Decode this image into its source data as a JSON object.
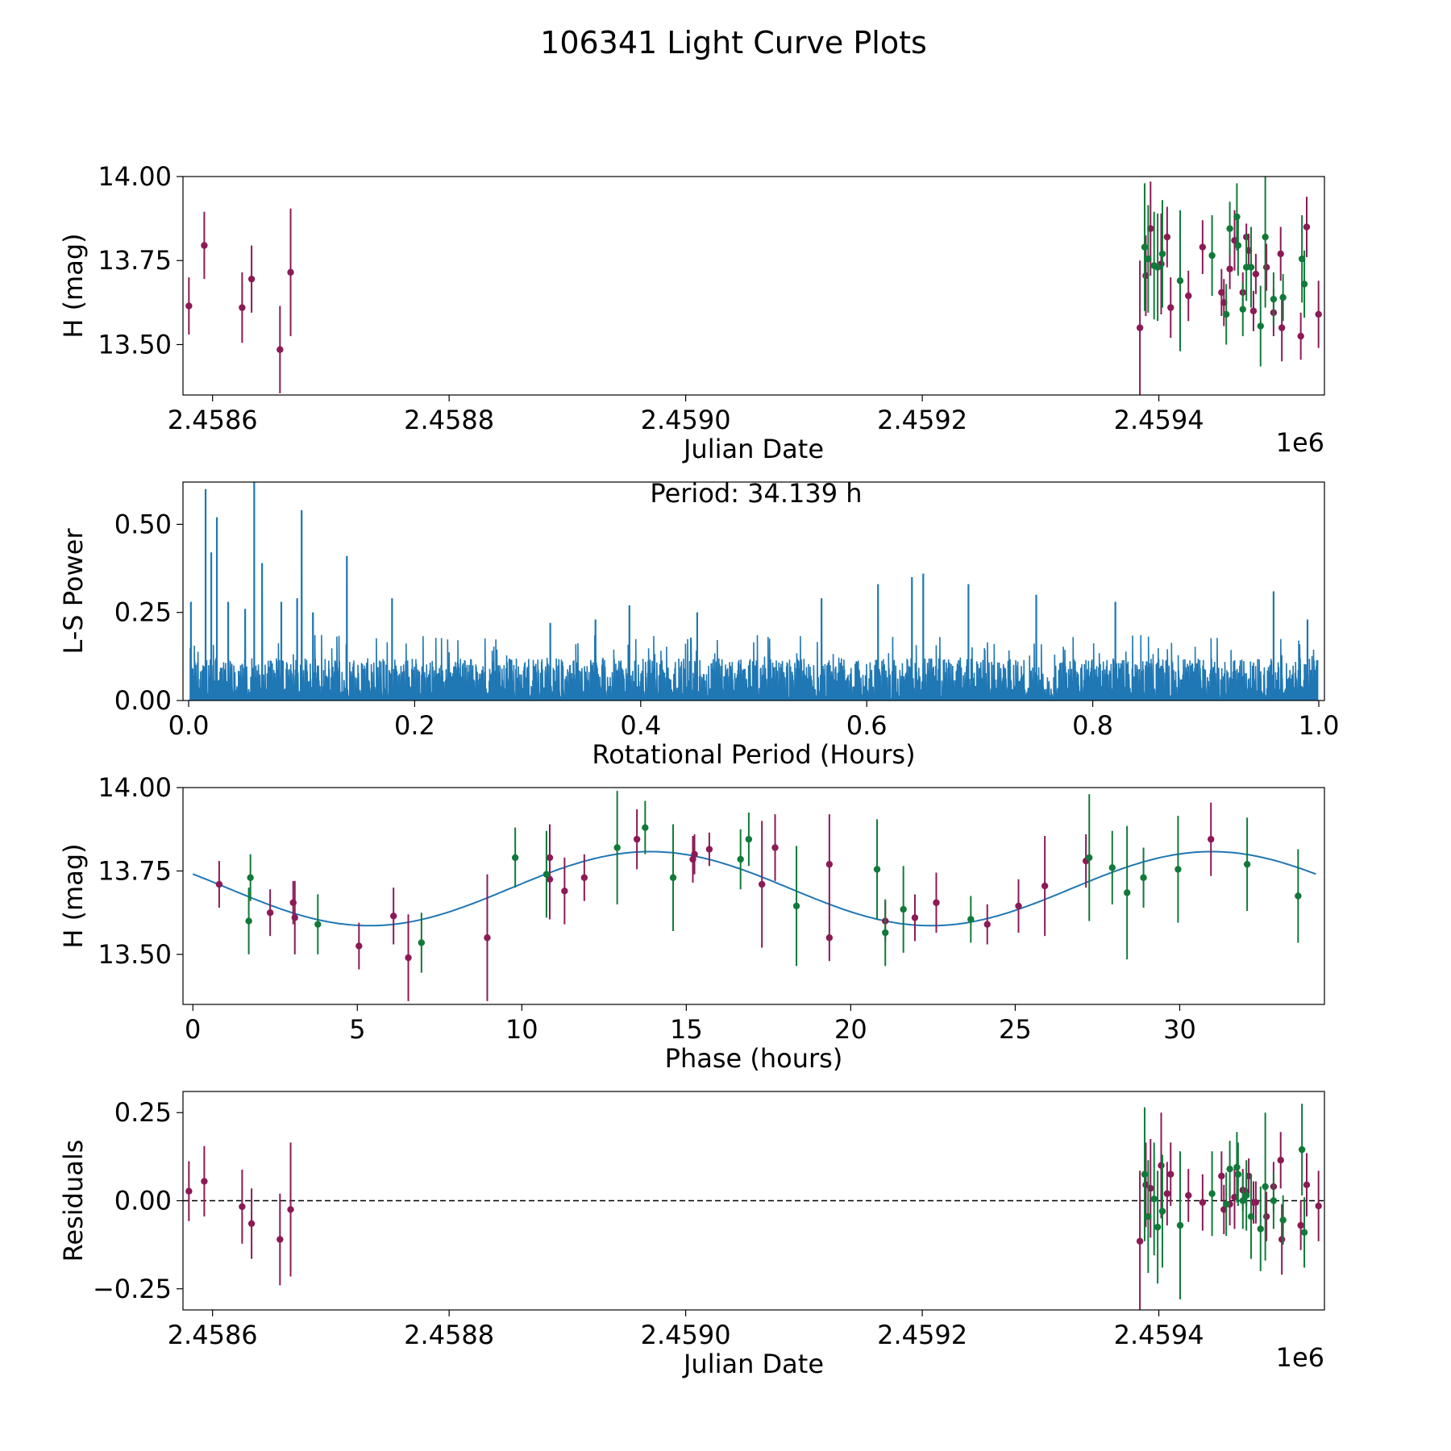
{
  "figure_title": "106341 Light Curve Plots",
  "colors": {
    "maroon": "#8b1a55",
    "green": "#117a3a",
    "line_blue": "#1f77b4",
    "axis": "#000000"
  },
  "chart_data": [
    {
      "id": "lightcurve-jd",
      "type": "scatter",
      "title": "",
      "xlabel": "Julian Date",
      "ylabel": "H (mag)",
      "xlim": [
        2458575,
        2459540
      ],
      "ylim": [
        13.35,
        14.0
      ],
      "x_offset_label": "1e6",
      "xticks": [
        2458600,
        2458800,
        2459000,
        2459200,
        2459400
      ],
      "xtick_labels": [
        "2.4586",
        "2.4588",
        "2.4590",
        "2.4592",
        "2.4594"
      ],
      "yticks": [
        13.5,
        13.75,
        14.0
      ],
      "ytick_labels": [
        "13.50",
        "13.75",
        "14.00"
      ],
      "series": [
        {
          "name": "maroon",
          "color_key": "maroon",
          "points": [
            [
              2458580,
              13.615,
              0.085
            ],
            [
              2458593,
              13.795,
              0.1
            ],
            [
              2458625,
              13.61,
              0.105
            ],
            [
              2458633,
              13.695,
              0.1
            ],
            [
              2458657,
              13.485,
              0.13
            ],
            [
              2458666,
              13.715,
              0.19
            ],
            [
              2459384,
              13.55,
              0.2
            ],
            [
              2459389,
              13.705,
              0.12
            ],
            [
              2459393,
              13.845,
              0.14
            ],
            [
              2459402,
              13.74,
              0.15
            ],
            [
              2459407,
              13.82,
              0.09
            ],
            [
              2459410,
              13.61,
              0.09
            ],
            [
              2459425,
              13.645,
              0.075
            ],
            [
              2459437,
              13.79,
              0.08
            ],
            [
              2459453,
              13.655,
              0.07
            ],
            [
              2459455,
              13.625,
              0.07
            ],
            [
              2459460,
              13.725,
              0.06
            ],
            [
              2459464,
              13.81,
              0.09
            ],
            [
              2459471,
              13.655,
              0.06
            ],
            [
              2459474,
              13.82,
              0.04
            ],
            [
              2459476,
              13.78,
              0.05
            ],
            [
              2459480,
              13.6,
              0.06
            ],
            [
              2459482,
              13.71,
              0.06
            ],
            [
              2459491,
              13.73,
              0.07
            ],
            [
              2459497,
              13.595,
              0.07
            ],
            [
              2459503,
              13.77,
              0.08
            ],
            [
              2459504,
              13.55,
              0.1
            ],
            [
              2459520,
              13.525,
              0.07
            ],
            [
              2459525,
              13.85,
              0.09
            ],
            [
              2459535,
              13.59,
              0.1
            ]
          ]
        },
        {
          "name": "green",
          "color_key": "green",
          "points": [
            [
              2459388,
              13.79,
              0.19
            ],
            [
              2459391,
              13.755,
              0.16
            ],
            [
              2459396,
              13.735,
              0.16
            ],
            [
              2459399,
              13.73,
              0.16
            ],
            [
              2459403,
              13.77,
              0.16
            ],
            [
              2459418,
              13.69,
              0.21
            ],
            [
              2459445,
              13.765,
              0.12
            ],
            [
              2459457,
              13.59,
              0.09
            ],
            [
              2459460,
              13.845,
              0.08
            ],
            [
              2459466,
              13.88,
              0.1
            ],
            [
              2459467,
              13.795,
              0.09
            ],
            [
              2459471,
              13.605,
              0.08
            ],
            [
              2459474,
              13.73,
              0.1
            ],
            [
              2459478,
              13.73,
              0.12
            ],
            [
              2459486,
              13.555,
              0.12
            ],
            [
              2459490,
              13.82,
              0.21
            ],
            [
              2459497,
              13.635,
              0.08
            ],
            [
              2459505,
              13.64,
              0.07
            ],
            [
              2459521,
              13.755,
              0.13
            ],
            [
              2459523,
              13.68,
              0.1
            ]
          ]
        }
      ]
    },
    {
      "id": "periodogram",
      "type": "line",
      "title": "",
      "xlabel": "Rotational Period (Hours)",
      "ylabel": "L-S Power",
      "xlim": [
        -0.005,
        1.005
      ],
      "ylim": [
        0.0,
        0.62
      ],
      "xticks": [
        0.0,
        0.2,
        0.4,
        0.6,
        0.8,
        1.0
      ],
      "xtick_labels": [
        "0.0",
        "0.2",
        "0.4",
        "0.6",
        "0.8",
        "1.0"
      ],
      "yticks": [
        0.0,
        0.25,
        0.5
      ],
      "ytick_labels": [
        "0.00",
        "0.25",
        "0.50"
      ],
      "annotation": "Period: 34.139 h",
      "baseline_power": 0.12,
      "peaks": [
        [
          0.002,
          0.28
        ],
        [
          0.015,
          0.6
        ],
        [
          0.02,
          0.42
        ],
        [
          0.025,
          0.52
        ],
        [
          0.035,
          0.28
        ],
        [
          0.05,
          0.26
        ],
        [
          0.058,
          0.62
        ],
        [
          0.065,
          0.39
        ],
        [
          0.082,
          0.28
        ],
        [
          0.096,
          0.29
        ],
        [
          0.1,
          0.54
        ],
        [
          0.11,
          0.25
        ],
        [
          0.14,
          0.41
        ],
        [
          0.18,
          0.29
        ],
        [
          0.32,
          0.22
        ],
        [
          0.36,
          0.23
        ],
        [
          0.39,
          0.27
        ],
        [
          0.45,
          0.25
        ],
        [
          0.56,
          0.29
        ],
        [
          0.61,
          0.33
        ],
        [
          0.64,
          0.35
        ],
        [
          0.65,
          0.36
        ],
        [
          0.69,
          0.33
        ],
        [
          0.75,
          0.3
        ],
        [
          0.82,
          0.28
        ],
        [
          0.96,
          0.31
        ],
        [
          0.99,
          0.23
        ]
      ]
    },
    {
      "id": "phase-fold",
      "type": "scatter",
      "title": "",
      "xlabel": "Phase (hours)",
      "ylabel": "H (mag)",
      "xlim": [
        -0.3,
        34.4
      ],
      "ylim": [
        13.35,
        14.0
      ],
      "xticks": [
        0,
        5,
        10,
        15,
        20,
        25,
        30
      ],
      "xtick_labels": [
        "0",
        "5",
        "10",
        "15",
        "20",
        "25",
        "30"
      ],
      "yticks": [
        13.5,
        13.75,
        14.0
      ],
      "ytick_labels": [
        "13.50",
        "13.75",
        "14.00"
      ],
      "model": {
        "type": "sinusoid",
        "mean": 13.697,
        "amplitude": 0.111,
        "period": 17.07,
        "phase_offset": 13.9,
        "x_range": [
          0,
          34.14
        ]
      },
      "series": [
        {
          "name": "maroon",
          "color_key": "maroon",
          "points": [
            [
              0.8,
              13.71,
              0.07
            ],
            [
              2.35,
              13.625,
              0.07
            ],
            [
              3.05,
              13.655,
              0.065
            ],
            [
              3.1,
              13.61,
              0.11
            ],
            [
              5.05,
              13.525,
              0.07
            ],
            [
              6.1,
              13.615,
              0.085
            ],
            [
              6.55,
              13.49,
              0.13
            ],
            [
              8.95,
              13.55,
              0.19
            ],
            [
              10.85,
              13.79,
              0.1
            ],
            [
              10.85,
              13.725,
              0.12
            ],
            [
              11.3,
              13.69,
              0.1
            ],
            [
              11.9,
              13.73,
              0.07
            ],
            [
              13.5,
              13.845,
              0.09
            ],
            [
              15.2,
              13.785,
              0.07
            ],
            [
              15.25,
              13.8,
              0.06
            ],
            [
              15.7,
              13.815,
              0.05
            ],
            [
              17.3,
              13.71,
              0.19
            ],
            [
              17.7,
              13.82,
              0.1
            ],
            [
              19.35,
              13.77,
              0.15
            ],
            [
              19.35,
              13.55,
              0.07
            ],
            [
              21.05,
              13.6,
              0.06
            ],
            [
              21.95,
              13.61,
              0.07
            ],
            [
              22.6,
              13.655,
              0.09
            ],
            [
              24.15,
              13.59,
              0.06
            ],
            [
              25.1,
              13.645,
              0.08
            ],
            [
              25.9,
              13.705,
              0.15
            ],
            [
              27.15,
              13.78,
              0.08
            ],
            [
              30.95,
              13.845,
              0.11
            ]
          ]
        },
        {
          "name": "green",
          "color_key": "green",
          "points": [
            [
              1.7,
              13.6,
              0.1
            ],
            [
              1.75,
              13.73,
              0.07
            ],
            [
              3.8,
              13.59,
              0.09
            ],
            [
              6.95,
              13.535,
              0.09
            ],
            [
              9.8,
              13.79,
              0.09
            ],
            [
              10.75,
              13.74,
              0.13
            ],
            [
              12.9,
              13.82,
              0.17
            ],
            [
              13.75,
              13.88,
              0.08
            ],
            [
              14.6,
              13.73,
              0.16
            ],
            [
              16.65,
              13.785,
              0.09
            ],
            [
              16.9,
              13.845,
              0.08
            ],
            [
              18.35,
              13.645,
              0.18
            ],
            [
              20.8,
              13.755,
              0.15
            ],
            [
              21.05,
              13.565,
              0.1
            ],
            [
              21.6,
              13.635,
              0.13
            ],
            [
              23.65,
              13.605,
              0.07
            ],
            [
              27.25,
              13.79,
              0.19
            ],
            [
              27.95,
              13.76,
              0.11
            ],
            [
              28.4,
              13.685,
              0.2
            ],
            [
              28.9,
              13.73,
              0.09
            ],
            [
              29.95,
              13.755,
              0.16
            ],
            [
              32.05,
              13.77,
              0.14
            ],
            [
              33.6,
              13.675,
              0.14
            ]
          ]
        }
      ]
    },
    {
      "id": "residuals",
      "type": "scatter",
      "title": "",
      "xlabel": "Julian Date",
      "ylabel": "Residuals",
      "xlim": [
        2458575,
        2459540
      ],
      "ylim": [
        -0.31,
        0.31
      ],
      "x_offset_label": "1e6",
      "xticks": [
        2458600,
        2458800,
        2459000,
        2459200,
        2459400
      ],
      "xtick_labels": [
        "2.4586",
        "2.4588",
        "2.4590",
        "2.4592",
        "2.4594"
      ],
      "yticks": [
        -0.25,
        0.0,
        0.25
      ],
      "ytick_labels": [
        "−0.25",
        "0.00",
        "0.25"
      ],
      "zero_line": 0.0,
      "series": [
        {
          "name": "maroon",
          "color_key": "maroon",
          "points": [
            [
              2458580,
              0.027,
              0.085
            ],
            [
              2458593,
              0.055,
              0.1
            ],
            [
              2458625,
              -0.017,
              0.105
            ],
            [
              2458633,
              -0.065,
              0.1
            ],
            [
              2458657,
              -0.11,
              0.13
            ],
            [
              2458666,
              -0.025,
              0.19
            ],
            [
              2459384,
              -0.115,
              0.2
            ],
            [
              2459389,
              0.045,
              0.12
            ],
            [
              2459393,
              0.035,
              0.14
            ],
            [
              2459402,
              0.1,
              0.15
            ],
            [
              2459407,
              0.02,
              0.09
            ],
            [
              2459410,
              0.075,
              0.09
            ],
            [
              2459425,
              0.015,
              0.075
            ],
            [
              2459437,
              -0.005,
              0.08
            ],
            [
              2459453,
              0.07,
              0.07
            ],
            [
              2459455,
              -0.025,
              0.07
            ],
            [
              2459460,
              -0.01,
              0.06
            ],
            [
              2459464,
              0.01,
              0.09
            ],
            [
              2459471,
              0.03,
              0.06
            ],
            [
              2459474,
              0.025,
              0.04
            ],
            [
              2459476,
              0.07,
              0.05
            ],
            [
              2459480,
              -0.005,
              0.06
            ],
            [
              2459482,
              -0.005,
              0.06
            ],
            [
              2459491,
              -0.045,
              0.07
            ],
            [
              2459497,
              0.04,
              0.07
            ],
            [
              2459503,
              0.115,
              0.08
            ],
            [
              2459504,
              -0.11,
              0.1
            ],
            [
              2459520,
              -0.07,
              0.07
            ],
            [
              2459525,
              0.045,
              0.09
            ],
            [
              2459535,
              -0.015,
              0.1
            ]
          ]
        },
        {
          "name": "green",
          "color_key": "green",
          "points": [
            [
              2459388,
              0.075,
              0.19
            ],
            [
              2459391,
              -0.045,
              0.16
            ],
            [
              2459396,
              0.005,
              0.16
            ],
            [
              2459399,
              -0.075,
              0.16
            ],
            [
              2459403,
              -0.03,
              0.16
            ],
            [
              2459418,
              -0.07,
              0.21
            ],
            [
              2459445,
              0.02,
              0.12
            ],
            [
              2459457,
              -0.01,
              0.09
            ],
            [
              2459460,
              0.09,
              0.08
            ],
            [
              2459466,
              0.095,
              0.1
            ],
            [
              2459467,
              0.075,
              0.09
            ],
            [
              2459471,
              0.0,
              0.08
            ],
            [
              2459474,
              0.015,
              0.1
            ],
            [
              2459478,
              -0.045,
              0.12
            ],
            [
              2459486,
              -0.08,
              0.12
            ],
            [
              2459490,
              0.04,
              0.21
            ],
            [
              2459497,
              0.0,
              0.08
            ],
            [
              2459505,
              -0.055,
              0.07
            ],
            [
              2459521,
              0.145,
              0.13
            ],
            [
              2459523,
              -0.09,
              0.1
            ]
          ]
        }
      ]
    }
  ]
}
